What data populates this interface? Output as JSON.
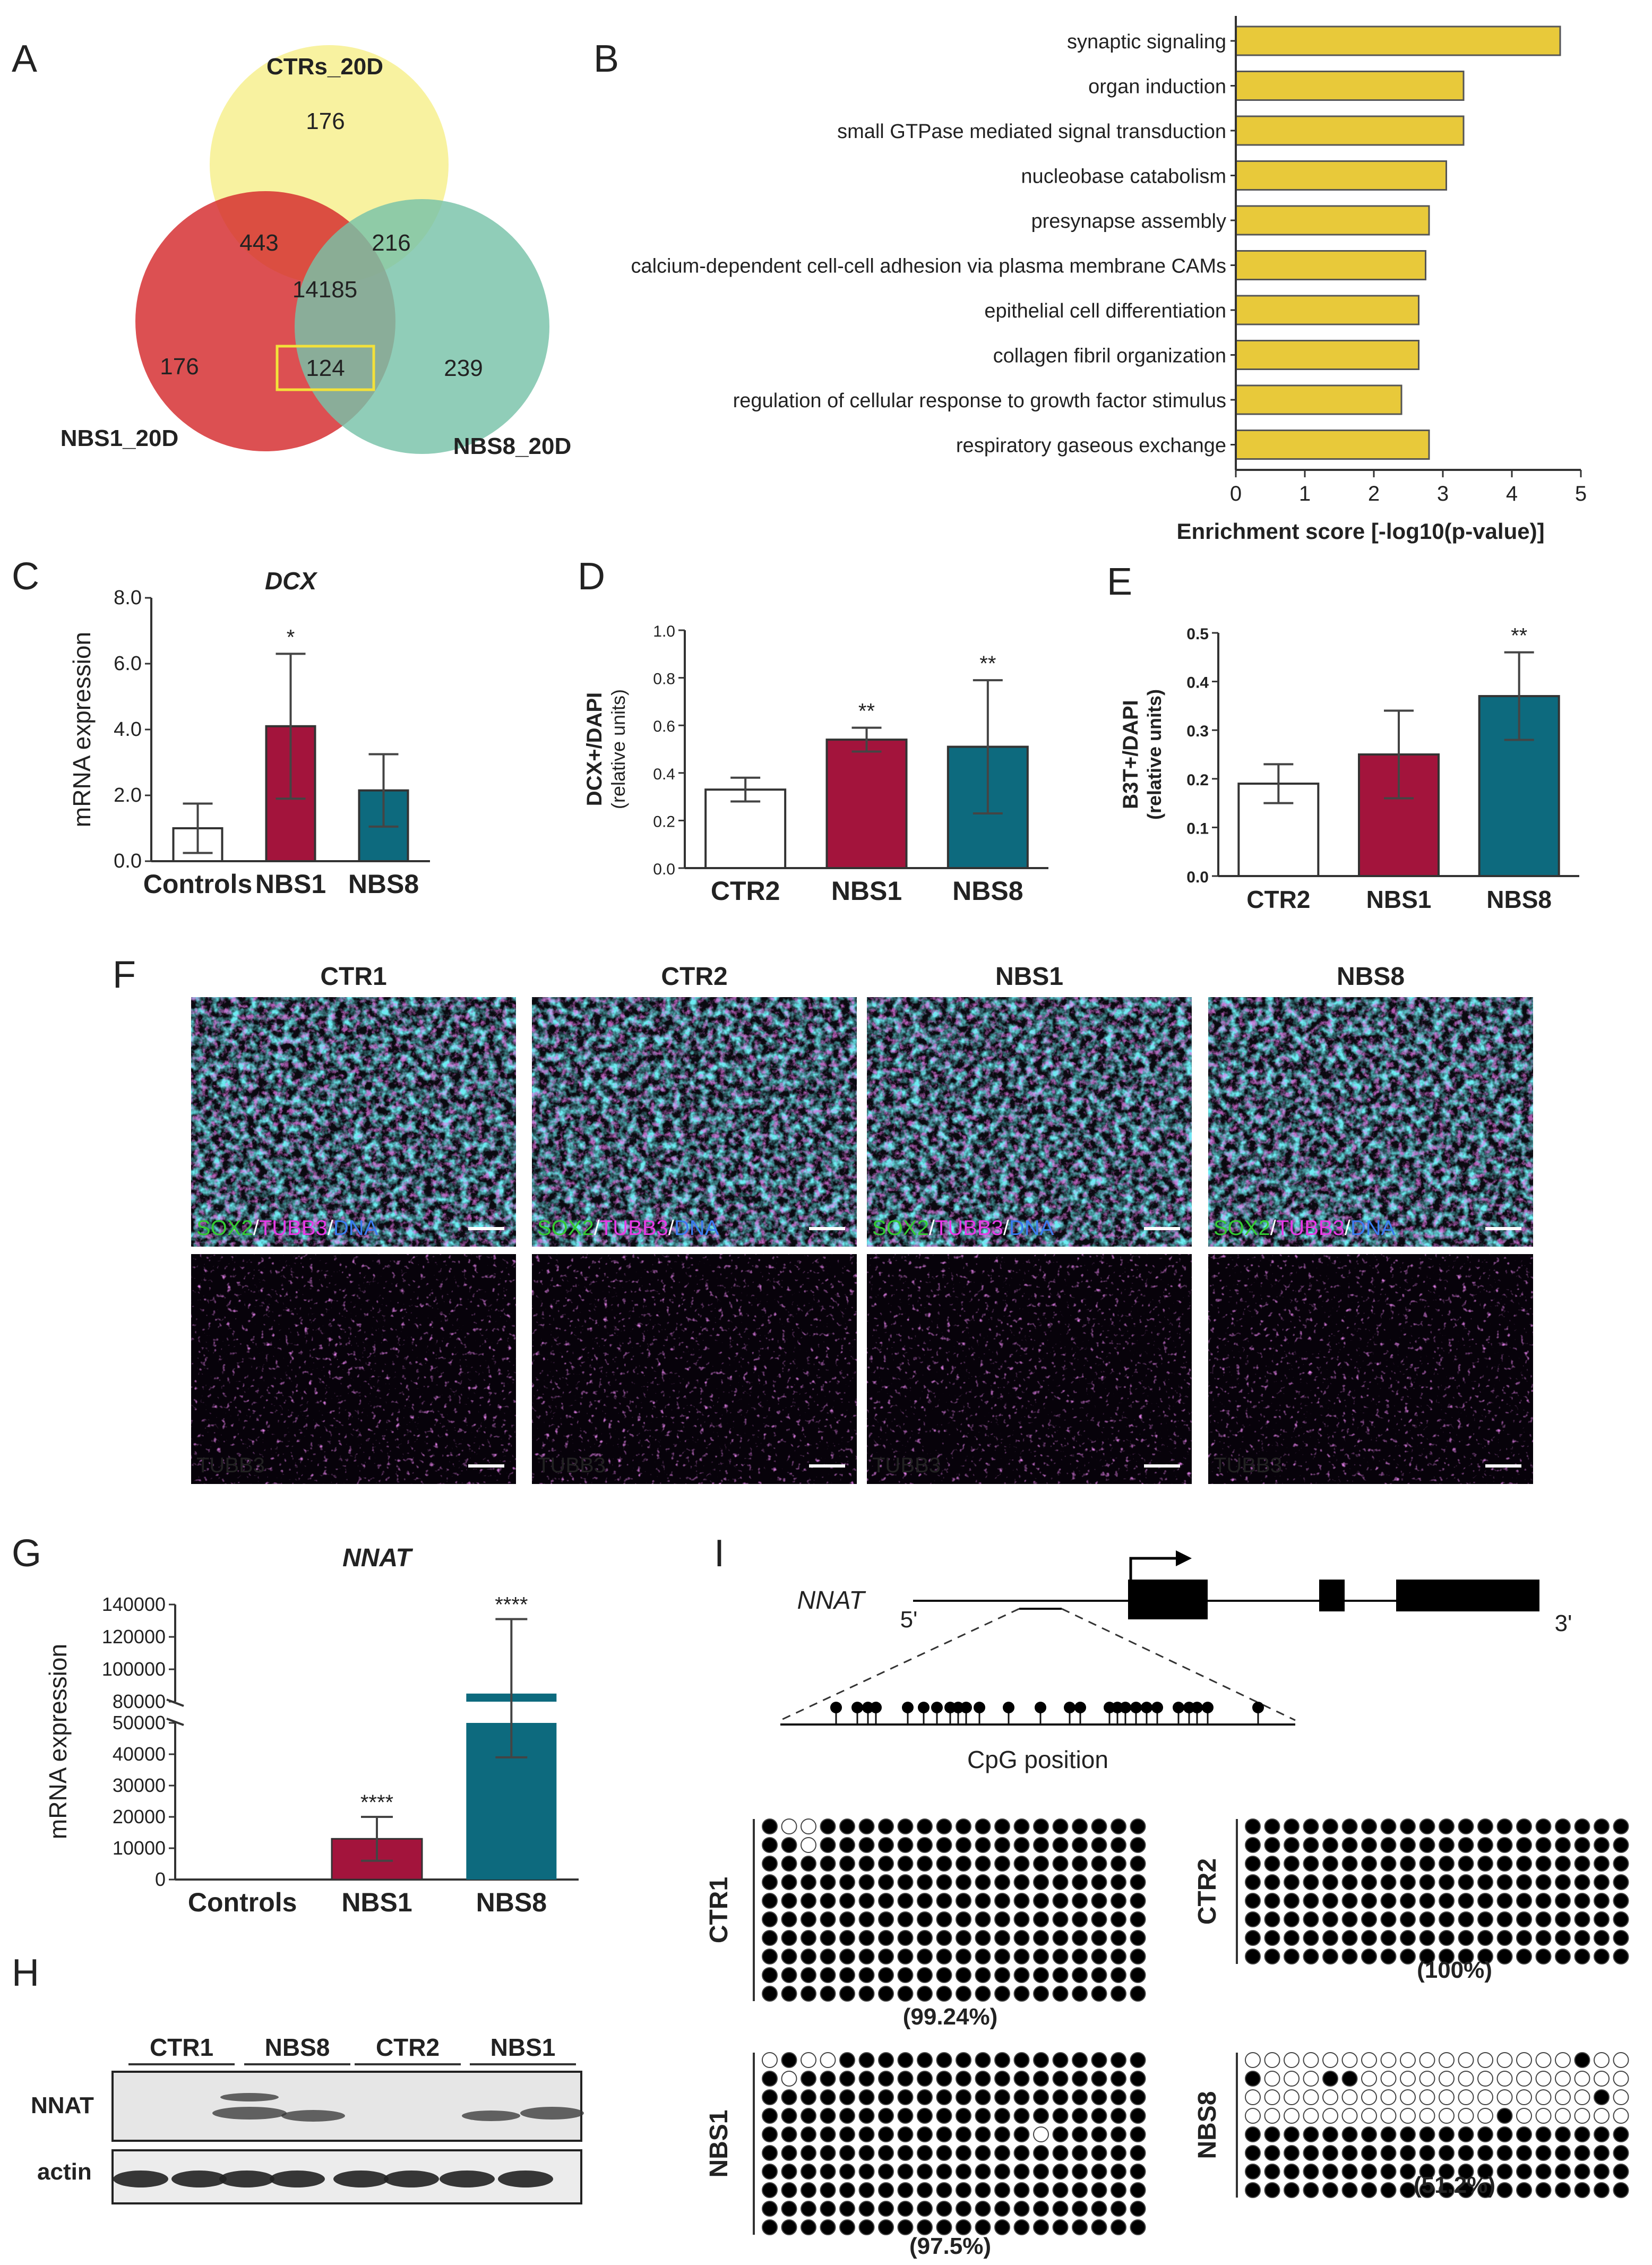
{
  "panel_letters": [
    "A",
    "B",
    "C",
    "D",
    "E",
    "F",
    "G",
    "H",
    "I"
  ],
  "venn": {
    "sets": [
      "CTRs_20D",
      "NBS1_20D",
      "NBS8_20D"
    ],
    "regions": {
      "ctr_only": "176",
      "ctr_nbs1": "443",
      "ctr_nbs8": "216",
      "all": "14185",
      "nbs1_only": "176",
      "nbs1_nbs8": "124",
      "nbs8_only": "239"
    },
    "colors": {
      "ctr": "#f7f08f",
      "nbs1": "#d42a2c",
      "nbs8": "#78c2a8",
      "highlight": "#f3e13a"
    }
  },
  "chart_data": [
    {
      "id": "B",
      "type": "bar",
      "orientation": "horizontal",
      "categories": [
        "synaptic signaling",
        "organ induction",
        "small GTPase mediated signal transduction",
        "nucleobase catabolism",
        "presynapse assembly",
        "calcium-dependent cell-cell adhesion via plasma membrane CAMs",
        "epithelial cell differentiation",
        "collagen fibril organization",
        "regulation of cellular response to growth factor stimulus",
        "respiratory gaseous exchange"
      ],
      "values": [
        4.7,
        3.3,
        3.3,
        3.05,
        2.8,
        2.75,
        2.65,
        2.65,
        2.4,
        2.8
      ],
      "xlabel": "Enrichment score [-log10(p-value)]",
      "xlim": [
        0,
        5
      ],
      "xticks": [
        "0",
        "1",
        "2",
        "3",
        "4",
        "5"
      ],
      "color": "#e8c93a"
    },
    {
      "id": "C",
      "type": "bar",
      "title": "DCX",
      "ylabel": "mRNA expression",
      "categories": [
        "Controls",
        "NBS1",
        "NBS8"
      ],
      "values": [
        1.0,
        4.1,
        2.15
      ],
      "errors": [
        0.75,
        2.2,
        1.1
      ],
      "significance": [
        "",
        "*",
        ""
      ],
      "ylim": [
        0,
        8
      ],
      "yticks": [
        "0.0",
        "2.0",
        "4.0",
        "6.0",
        "8.0"
      ],
      "colors": [
        "#ffffff",
        "#a3143c",
        "#0d6a7e"
      ]
    },
    {
      "id": "D",
      "type": "bar",
      "ylabel": "DCX+/DAPI",
      "ylabel2": "(relative units)",
      "categories": [
        "CTR2",
        "NBS1",
        "NBS8"
      ],
      "values": [
        0.33,
        0.54,
        0.51
      ],
      "errors": [
        0.05,
        0.05,
        0.28
      ],
      "significance": [
        "",
        "**",
        "**"
      ],
      "ylim": [
        0,
        1.0
      ],
      "yticks": [
        "0.0",
        "0.2",
        "0.4",
        "0.6",
        "0.8",
        "1.0"
      ],
      "colors": [
        "#ffffff",
        "#a3143c",
        "#0d6a7e"
      ]
    },
    {
      "id": "E",
      "type": "bar",
      "ylabel": "B3T+/DAPI",
      "ylabel2": "(relative units)",
      "categories": [
        "CTR2",
        "NBS1",
        "NBS8"
      ],
      "values": [
        0.19,
        0.25,
        0.37
      ],
      "errors": [
        0.04,
        0.09,
        0.09
      ],
      "significance": [
        "",
        "",
        "**"
      ],
      "ylim": [
        0,
        0.5
      ],
      "yticks": [
        "0.0",
        "0.1",
        "0.2",
        "0.3",
        "0.4",
        "0.5"
      ],
      "colors": [
        "#ffffff",
        "#a3143c",
        "#0d6a7e"
      ]
    },
    {
      "id": "G",
      "type": "bar",
      "title": "NNAT",
      "ylabel": "mRNA expression",
      "categories": [
        "Controls",
        "NBS1",
        "NBS8"
      ],
      "values": [
        0,
        13000,
        85000
      ],
      "errors": [
        0,
        7000,
        46000
      ],
      "significance": [
        "",
        "****",
        "****"
      ],
      "axis_break": [
        50000,
        80000
      ],
      "yticks_lower": [
        "0",
        "10000",
        "20000",
        "30000",
        "40000",
        "50000"
      ],
      "yticks_upper": [
        "80000",
        "100000",
        "120000",
        "140000"
      ],
      "colors": [
        "#ffffff",
        "#a3143c",
        "#0d6a7e"
      ]
    }
  ],
  "microscopy": {
    "columns": [
      "CTR1",
      "CTR2",
      "NBS1",
      "NBS8"
    ],
    "top_label": {
      "sox2": "SOX2",
      "tubb3": "TUBB3",
      "dna": "DNA",
      "sep": "/"
    },
    "bottom_label": "TUBB3",
    "colors": {
      "sox2": "#33cc33",
      "tubb3": "#e83ae8",
      "dna": "#3a7cf0",
      "cyan": "#22c8d8"
    }
  },
  "western": {
    "lanes": [
      "CTR1",
      "NBS8",
      "CTR2",
      "NBS1"
    ],
    "rows": [
      "NNAT",
      "actin"
    ]
  },
  "cpg": {
    "gene": "NNAT",
    "five_prime": "5'",
    "three_prime": "3'",
    "xlabel": "CpG position",
    "samples": [
      {
        "name": "CTR1",
        "pct": "(99.24%)",
        "rows": 10,
        "cols": 20
      },
      {
        "name": "CTR2",
        "pct": "(100%)",
        "rows": 8,
        "cols": 20
      },
      {
        "name": "NBS1",
        "pct": "(97.5%)",
        "rows": 10,
        "cols": 20
      },
      {
        "name": "NBS8",
        "pct": "(51.2%)",
        "rows": 8,
        "cols": 20
      }
    ]
  }
}
